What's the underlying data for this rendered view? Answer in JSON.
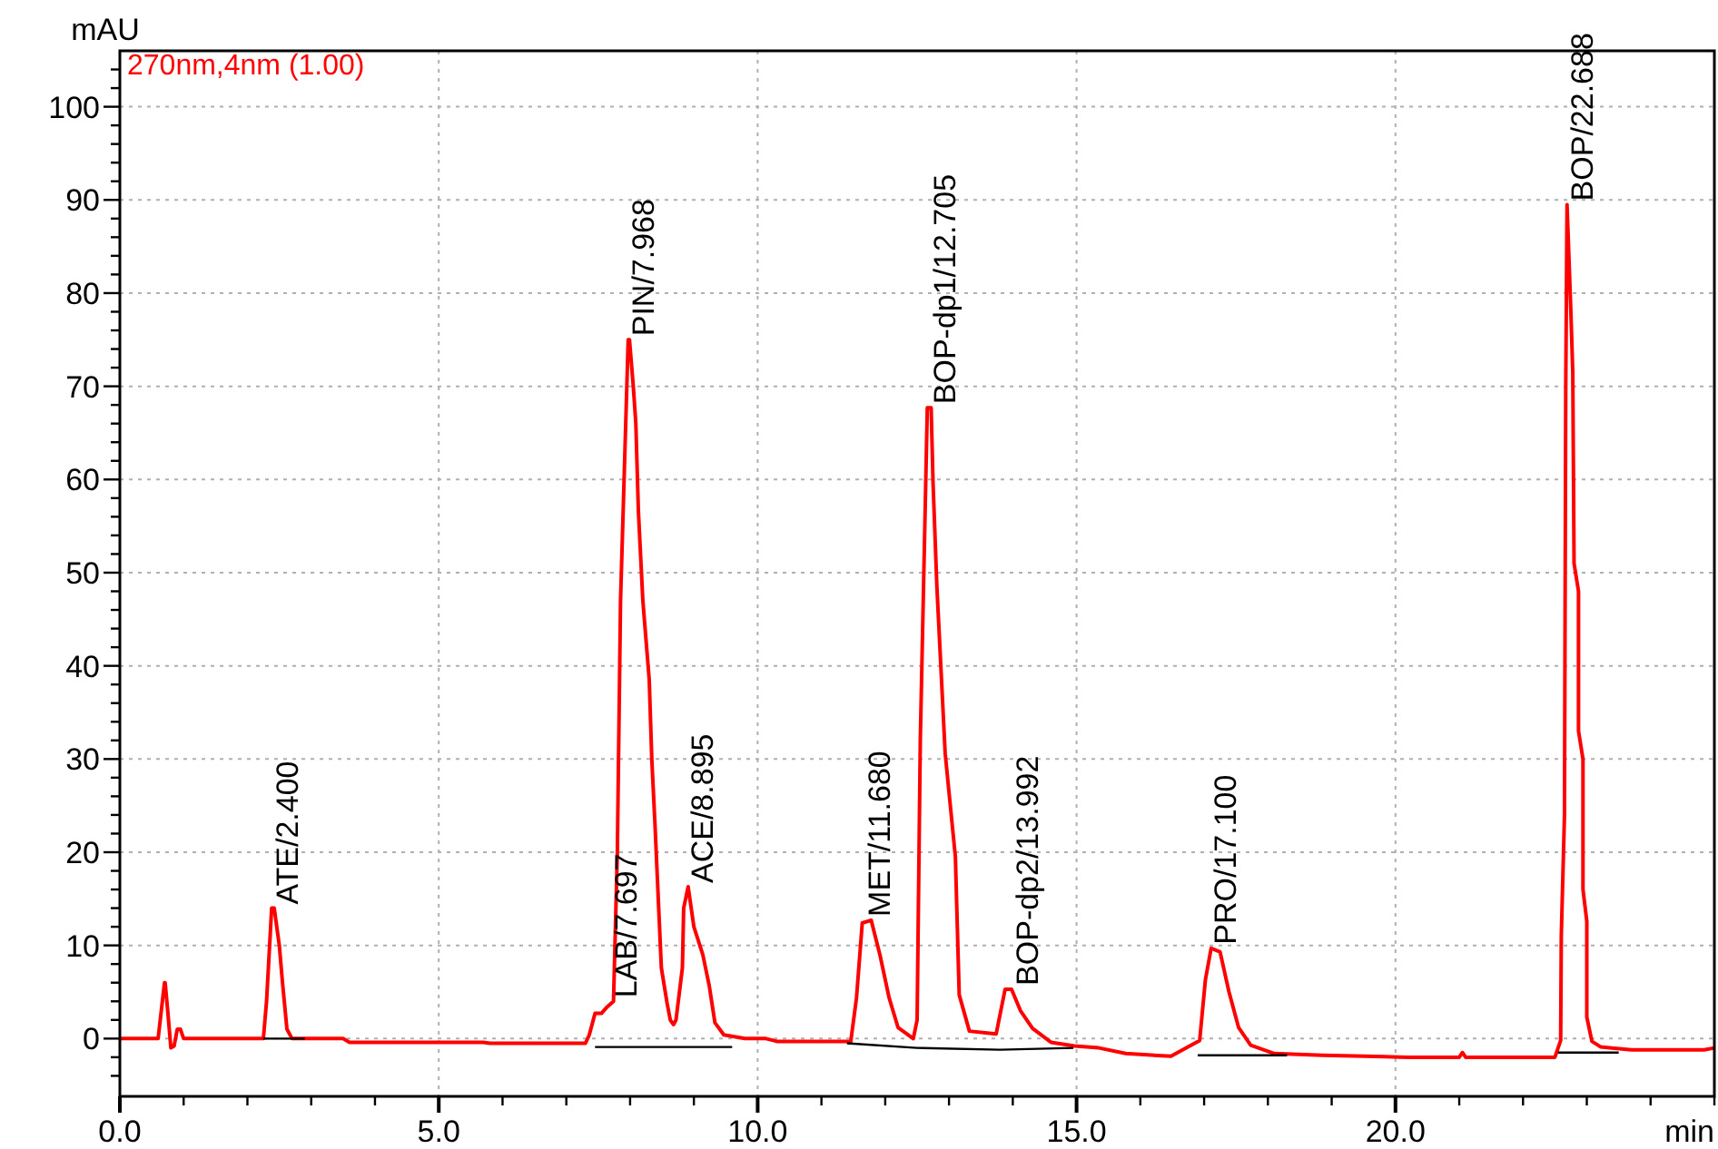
{
  "chart_data": {
    "type": "line",
    "xlabel": "min",
    "ylabel": "mAU",
    "xlim": [
      0,
      25
    ],
    "ylim": [
      -6.2,
      106
    ],
    "xticks": [
      {
        "value": 0,
        "label": "0.0"
      },
      {
        "value": 1,
        "label": null
      },
      {
        "value": 2,
        "label": null
      },
      {
        "value": 3,
        "label": null
      },
      {
        "value": 4,
        "label": null
      },
      {
        "value": 5,
        "label": "5.0"
      },
      {
        "value": 6,
        "label": null
      },
      {
        "value": 7,
        "label": null
      },
      {
        "value": 8,
        "label": null
      },
      {
        "value": 9,
        "label": null
      },
      {
        "value": 10,
        "label": "10.0"
      },
      {
        "value": 11,
        "label": null
      },
      {
        "value": 12,
        "label": null
      },
      {
        "value": 13,
        "label": null
      },
      {
        "value": 14,
        "label": null
      },
      {
        "value": 15,
        "label": "15.0"
      },
      {
        "value": 16,
        "label": null
      },
      {
        "value": 17,
        "label": null
      },
      {
        "value": 18,
        "label": null
      },
      {
        "value": 19,
        "label": null
      },
      {
        "value": 20,
        "label": "20.0"
      },
      {
        "value": 21,
        "label": null
      },
      {
        "value": 22,
        "label": null
      },
      {
        "value": 23,
        "label": null
      },
      {
        "value": 24,
        "label": null
      },
      {
        "value": 25,
        "label": null
      }
    ],
    "yticks": [
      {
        "value": -4,
        "label": null
      },
      {
        "value": -2,
        "label": null
      },
      0,
      {
        "value": 2,
        "label": null
      },
      {
        "value": 4,
        "label": null
      },
      {
        "value": 6,
        "label": null
      },
      {
        "value": 8,
        "label": null
      },
      10,
      {
        "value": 12,
        "label": null
      },
      {
        "value": 14,
        "label": null
      },
      {
        "value": 16,
        "label": null
      },
      {
        "value": 18,
        "label": null
      },
      20,
      {
        "value": 22,
        "label": null
      },
      {
        "value": 24,
        "label": null
      },
      {
        "value": 26,
        "label": null
      },
      {
        "value": 28,
        "label": null
      },
      30,
      {
        "value": 32,
        "label": null
      },
      {
        "value": 34,
        "label": null
      },
      {
        "value": 36,
        "label": null
      },
      {
        "value": 38,
        "label": null
      },
      40,
      {
        "value": 42,
        "label": null
      },
      {
        "value": 44,
        "label": null
      },
      {
        "value": 46,
        "label": null
      },
      {
        "value": 48,
        "label": null
      },
      50,
      {
        "value": 52,
        "label": null
      },
      {
        "value": 54,
        "label": null
      },
      {
        "value": 56,
        "label": null
      },
      {
        "value": 58,
        "label": null
      },
      60,
      {
        "value": 62,
        "label": null
      },
      {
        "value": 64,
        "label": null
      },
      {
        "value": 66,
        "label": null
      },
      {
        "value": 68,
        "label": null
      },
      70,
      {
        "value": 72,
        "label": null
      },
      {
        "value": 74,
        "label": null
      },
      {
        "value": 76,
        "label": null
      },
      {
        "value": 78,
        "label": null
      },
      80,
      {
        "value": 82,
        "label": null
      },
      {
        "value": 84,
        "label": null
      },
      {
        "value": 86,
        "label": null
      },
      {
        "value": 88,
        "label": null
      },
      90,
      {
        "value": 92,
        "label": null
      },
      {
        "value": 94,
        "label": null
      },
      {
        "value": 96,
        "label": null
      },
      {
        "value": 98,
        "label": null
      },
      100,
      {
        "value": 102,
        "label": null
      },
      {
        "value": 104,
        "label": null
      }
    ],
    "grid": true,
    "legend": "top left",
    "series": [
      {
        "name": "270nm,4nm (1.00)",
        "color": "#ff0000",
        "x": [
          0,
          0.6,
          0.7,
          0.71,
          0.75,
          0.8,
          0.85,
          0.9,
          0.95,
          1.0,
          1.5,
          2.0,
          2.25,
          2.3,
          2.38,
          2.42,
          2.5,
          2.55,
          2.62,
          2.7,
          2.8,
          3.5,
          3.6,
          5.7,
          5.8,
          7.3,
          7.36,
          7.45,
          7.55,
          7.64,
          7.74,
          7.8,
          7.85,
          7.97,
          7.99,
          8.05,
          8.09,
          8.13,
          8.2,
          8.3,
          8.34,
          8.39,
          8.49,
          8.58,
          8.63,
          8.68,
          8.72,
          8.82,
          8.84,
          8.91,
          9.0,
          9.14,
          9.24,
          9.33,
          9.47,
          9.8,
          10.13,
          10.3,
          11.3,
          11.46,
          11.55,
          11.64,
          11.78,
          11.92,
          12.06,
          12.2,
          12.44,
          12.5,
          12.55,
          12.66,
          12.72,
          12.75,
          12.81,
          12.94,
          13.1,
          13.16,
          13.32,
          13.74,
          13.88,
          13.98,
          14.12,
          14.31,
          14.6,
          14.97,
          15.35,
          15.77,
          16.48,
          16.93,
          17.02,
          17.11,
          17.25,
          17.39,
          17.54,
          17.73,
          18.1,
          18.86,
          20.2,
          21.0,
          21.05,
          21.1,
          22.5,
          22.59,
          22.6,
          22.65,
          22.67,
          22.69,
          22.75,
          22.78,
          22.8,
          22.87,
          22.87,
          22.94,
          22.94,
          23.0,
          23.0,
          23.08,
          23.22,
          23.7,
          24.84,
          25.0
        ],
        "values": [
          0,
          0,
          6,
          6,
          3,
          -1,
          -0.8,
          1,
          1,
          0,
          0,
          0,
          0,
          4,
          14,
          14,
          10,
          6,
          1,
          0,
          0,
          0,
          -0.4,
          -0.4,
          -0.5,
          -0.5,
          0.4,
          2.7,
          2.7,
          3.4,
          4,
          20,
          47,
          75,
          75,
          70,
          66,
          56.6,
          47,
          38.5,
          30,
          23,
          7.6,
          3.8,
          2,
          1.5,
          2,
          7.6,
          14,
          16.3,
          12,
          9,
          5.7,
          1.7,
          0.4,
          0,
          0,
          -0.3,
          -0.3,
          -0.3,
          4.4,
          12.4,
          12.7,
          8.9,
          4.4,
          1.2,
          0,
          2,
          32,
          67.7,
          67.7,
          59.6,
          48.5,
          30.6,
          19.5,
          4.7,
          0.8,
          0.5,
          5.3,
          5.3,
          3,
          1.1,
          -0.4,
          -0.8,
          -1,
          -1.6,
          -1.9,
          -0.2,
          6.3,
          9.7,
          9.3,
          5,
          1.2,
          -0.7,
          -1.6,
          -1.8,
          -2,
          -2,
          -1.5,
          -2,
          -2,
          -0.2,
          11,
          24,
          70,
          89.5,
          78,
          71.5,
          51,
          48,
          33,
          30,
          16,
          12.6,
          2.3,
          -0.3,
          -0.9,
          -1.2,
          -1.2,
          -1
        ]
      },
      {
        "color": "#000000",
        "x": [
          2.25,
          2.9
        ],
        "values": [
          0,
          0
        ]
      },
      {
        "color": "#000000",
        "x": [
          7.45,
          8.7,
          9.6
        ],
        "values": [
          -0.9,
          -0.9,
          -0.9
        ]
      },
      {
        "color": "#000000",
        "x": [
          11.4,
          12.5,
          13.8,
          14.95
        ],
        "values": [
          -0.5,
          -1,
          -1.2,
          -1
        ]
      },
      {
        "color": "#000000",
        "x": [
          16.9,
          18.3
        ],
        "values": [
          -1.8,
          -1.8
        ]
      },
      {
        "color": "#000000",
        "x": [
          22.55,
          23.5
        ],
        "values": [
          -1.5,
          -1.5
        ]
      }
    ],
    "annotations": [
      {
        "text": "ATE/2.400",
        "x": 2.4,
        "y": 14
      },
      {
        "text": "LAB/7.697",
        "x": 7.697,
        "y": 4
      },
      {
        "text": "PIN/7.968",
        "x": 7.968,
        "y": 75
      },
      {
        "text": "ACE/8.895",
        "x": 8.895,
        "y": 16.3
      },
      {
        "text": "MET/11.680",
        "x": 11.68,
        "y": 12.7
      },
      {
        "text": "BOP-dp1/12.705",
        "x": 12.705,
        "y": 67.7
      },
      {
        "text": "BOP-dp2/13.992",
        "x": 13.992,
        "y": 5.3
      },
      {
        "text": "PRO/17.100",
        "x": 17.1,
        "y": 9.7
      },
      {
        "text": "BOP/22.688",
        "x": 22.688,
        "y": 89.5
      }
    ]
  }
}
